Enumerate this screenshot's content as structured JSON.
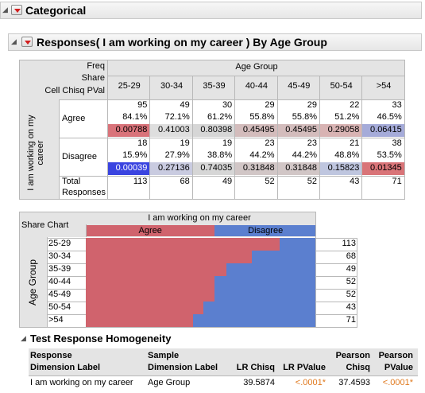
{
  "categorical": {
    "title": "Categorical"
  },
  "responses": {
    "title": "Responses( I am working on my career ) By Age Group"
  },
  "crosstab": {
    "legend": [
      "Freq",
      "Share",
      "Cell Chisq PVal"
    ],
    "col_group": "Age Group",
    "row_group": "I am working on my career",
    "columns": [
      "25-29",
      "30-34",
      "35-39",
      "40-44",
      "45-49",
      "50-54",
      ">54"
    ],
    "rows": [
      {
        "label": "Agree",
        "freq": [
          "95",
          "49",
          "30",
          "29",
          "29",
          "22",
          "33"
        ],
        "share": [
          "84.1%",
          "72.1%",
          "61.2%",
          "55.8%",
          "55.8%",
          "51.2%",
          "46.5%"
        ],
        "pval": [
          "0.00788",
          "0.41003",
          "0.80398",
          "0.45495",
          "0.45495",
          "0.29058",
          "0.06415"
        ],
        "pval_colors": [
          "#d9737a",
          "#dedede",
          "#d6d6d6",
          "#d3bcbc",
          "#d3bcbc",
          "#d8b3b3",
          "#a5abd9"
        ]
      },
      {
        "label": "Disagree",
        "freq": [
          "18",
          "19",
          "19",
          "23",
          "23",
          "21",
          "38"
        ],
        "share": [
          "15.9%",
          "27.9%",
          "38.8%",
          "44.2%",
          "44.2%",
          "48.8%",
          "53.5%"
        ],
        "pval": [
          "0.00039",
          "0.27136",
          "0.74035",
          "0.31848",
          "0.31848",
          "0.15823",
          "0.01345"
        ],
        "pval_colors": [
          "#3a44e0",
          "#c9cbe0",
          "#d6d6d6",
          "#d1c6c6",
          "#d1c6c6",
          "#bfc6df",
          "#d97478"
        ]
      }
    ],
    "total_label": [
      "Total",
      "Responses"
    ],
    "totals": [
      "113",
      "68",
      "49",
      "52",
      "52",
      "43",
      "71"
    ]
  },
  "share_chart": {
    "header": "Share Chart",
    "title": "I am working on my career",
    "legend": [
      "Agree",
      "Disagree"
    ],
    "colors": {
      "agree": "#d0636d",
      "disagree": "#5b7fcf"
    },
    "axis_label": "Age Group",
    "rows": [
      "25-29",
      "30-34",
      "35-39",
      "40-44",
      "45-49",
      "50-54",
      ">54"
    ],
    "agree_share": [
      84.1,
      72.1,
      61.2,
      55.8,
      55.8,
      51.2,
      46.5
    ],
    "totals": [
      "113",
      "68",
      "49",
      "52",
      "52",
      "43",
      "71"
    ]
  },
  "homogeneity": {
    "title": "Test Response Homogeneity",
    "headers": [
      [
        "Response",
        "Dimension Label"
      ],
      [
        "Sample",
        "Dimension Label"
      ],
      [
        "LR Chisq"
      ],
      [
        "LR PValue"
      ],
      [
        "Pearson",
        "Chisq"
      ],
      [
        "Pearson",
        "PValue"
      ]
    ],
    "row": [
      "I am working on my career",
      "Age Group",
      "39.5874",
      "<.0001*",
      "37.4593",
      "<.0001*"
    ],
    "pvalue_color": "#e07a1f"
  }
}
